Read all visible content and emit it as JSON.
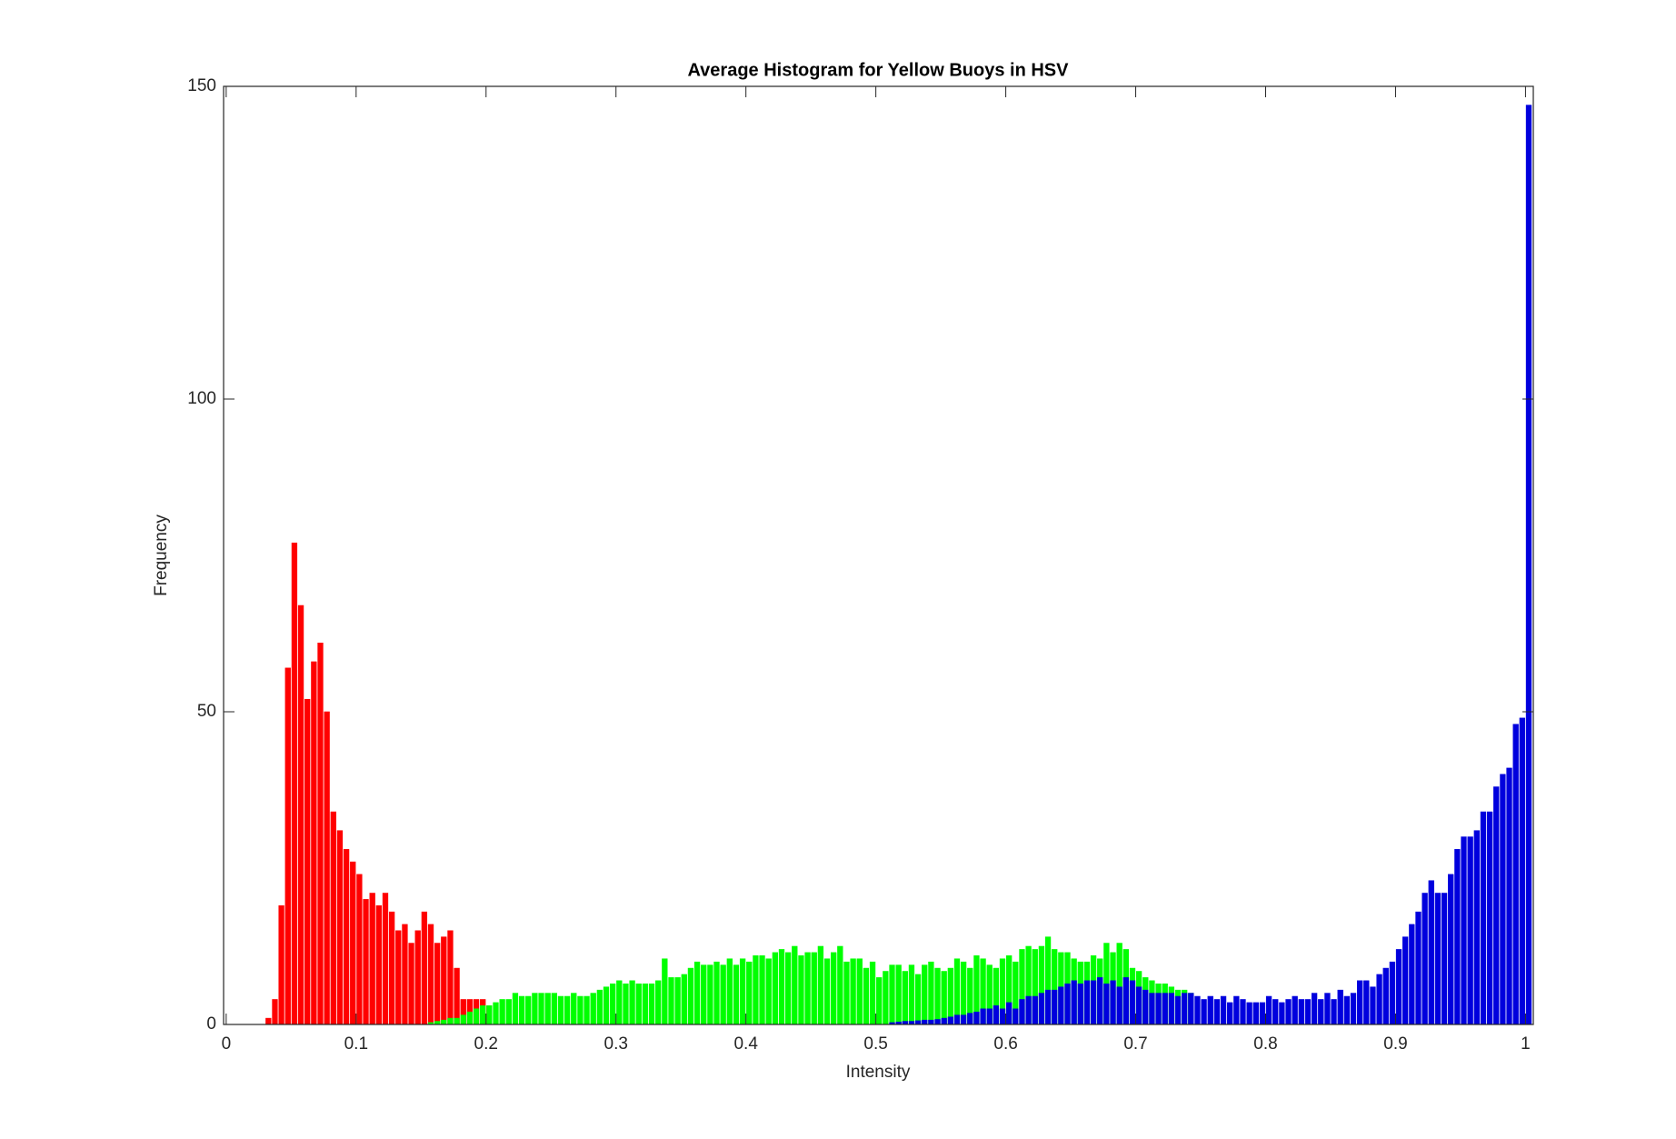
{
  "chart_data": {
    "type": "histogram",
    "title": "Average Histogram for Yellow Buoys in HSV",
    "x_label": "Intensity",
    "y_label": "Frequency",
    "xlim": [
      -0.002,
      1.006
    ],
    "ylim": [
      0,
      150
    ],
    "xticks": [
      0,
      0.1,
      0.2,
      0.3,
      0.4,
      0.5,
      0.6,
      0.7,
      0.8,
      0.9,
      1
    ],
    "yticks": [
      0,
      50,
      100,
      150
    ],
    "grid": false,
    "bins": [
      0,
      0.005,
      0.01,
      0.015,
      0.02,
      0.025,
      0.03,
      0.035,
      0.04,
      0.045,
      0.05,
      0.055,
      0.06,
      0.065,
      0.07,
      0.075,
      0.08,
      0.085,
      0.09,
      0.095,
      0.1,
      0.105,
      0.11,
      0.115,
      0.12,
      0.125,
      0.13,
      0.135,
      0.14,
      0.145,
      0.15,
      0.155,
      0.16,
      0.165,
      0.17,
      0.175,
      0.18,
      0.185,
      0.19,
      0.195,
      0.2,
      0.205,
      0.21,
      0.215,
      0.22,
      0.225,
      0.23,
      0.235,
      0.24,
      0.245,
      0.25,
      0.255,
      0.26,
      0.265,
      0.27,
      0.275,
      0.28,
      0.285,
      0.29,
      0.295,
      0.3,
      0.305,
      0.31,
      0.315,
      0.32,
      0.325,
      0.33,
      0.335,
      0.34,
      0.345,
      0.35,
      0.355,
      0.36,
      0.365,
      0.37,
      0.375,
      0.38,
      0.385,
      0.39,
      0.395,
      0.4,
      0.405,
      0.41,
      0.415,
      0.42,
      0.425,
      0.43,
      0.435,
      0.44,
      0.445,
      0.45,
      0.455,
      0.46,
      0.465,
      0.47,
      0.475,
      0.48,
      0.485,
      0.49,
      0.495,
      0.5,
      0.505,
      0.51,
      0.515,
      0.52,
      0.525,
      0.53,
      0.535,
      0.54,
      0.545,
      0.55,
      0.555,
      0.56,
      0.565,
      0.57,
      0.575,
      0.58,
      0.585,
      0.59,
      0.595,
      0.6,
      0.605,
      0.61,
      0.615,
      0.62,
      0.625,
      0.63,
      0.635,
      0.64,
      0.645,
      0.65,
      0.655,
      0.66,
      0.665,
      0.67,
      0.675,
      0.68,
      0.685,
      0.69,
      0.695,
      0.7,
      0.705,
      0.71,
      0.715,
      0.72,
      0.725,
      0.73,
      0.735,
      0.74,
      0.745,
      0.75,
      0.755,
      0.76,
      0.765,
      0.77,
      0.775,
      0.78,
      0.785,
      0.79,
      0.795,
      0.8,
      0.805,
      0.81,
      0.815,
      0.82,
      0.825,
      0.83,
      0.835,
      0.84,
      0.845,
      0.85,
      0.855,
      0.86,
      0.865,
      0.87,
      0.875,
      0.88,
      0.885,
      0.89,
      0.895,
      0.9,
      0.905,
      0.91,
      0.915,
      0.92,
      0.925,
      0.93,
      0.935,
      0.94,
      0.945,
      0.95,
      0.955,
      0.96,
      0.965,
      0.97,
      0.975,
      0.98,
      0.985,
      0.99,
      0.995,
      1,
      1.005
    ],
    "series": [
      {
        "color": "#ff0000",
        "values": [
          0,
          0,
          0,
          0,
          0,
          0,
          1,
          4,
          19,
          57,
          77,
          67,
          52,
          58,
          61,
          50,
          34,
          31,
          28,
          26,
          24,
          20,
          21,
          19,
          21,
          18,
          15,
          16,
          13,
          15,
          18,
          16,
          13,
          14,
          15,
          9,
          4,
          4,
          4,
          4,
          3,
          0,
          0,
          0,
          0,
          0,
          0,
          0,
          0,
          0,
          0,
          0,
          0,
          0,
          0,
          0,
          0,
          0,
          0,
          0,
          0,
          0,
          0,
          0,
          0,
          0,
          0,
          0,
          0,
          0,
          0,
          0,
          0,
          0,
          0,
          0,
          0,
          0,
          0,
          0,
          0,
          0,
          0,
          0,
          0,
          0,
          0,
          0,
          0,
          0,
          0,
          0,
          0,
          0,
          0,
          0,
          0,
          0,
          0,
          0,
          0,
          0,
          0,
          0,
          0,
          0,
          0,
          0,
          0,
          0,
          0,
          0,
          0,
          0,
          0,
          0,
          0,
          0,
          0,
          0,
          0,
          0,
          0,
          0,
          0,
          0,
          0,
          0,
          0,
          0,
          0,
          0,
          0,
          0,
          0,
          0,
          0,
          0,
          0,
          0,
          0,
          0,
          0,
          0,
          0,
          0,
          0,
          0,
          0,
          0,
          0,
          0,
          0,
          0,
          0,
          0,
          0,
          0,
          0,
          0,
          0,
          0,
          0,
          0,
          0,
          0,
          0,
          0,
          0,
          0,
          0,
          0,
          0,
          0,
          0,
          0,
          0,
          0,
          0,
          0,
          0,
          0,
          0,
          0,
          0,
          0,
          0,
          0,
          0,
          0,
          0,
          0,
          0,
          0,
          0,
          0,
          0,
          0,
          0,
          0,
          0
        ]
      },
      {
        "color": "#00ff00",
        "values": [
          0,
          0,
          0,
          0,
          0,
          0,
          0,
          0,
          0,
          0,
          0,
          0,
          0,
          0,
          0,
          0,
          0,
          0,
          0,
          0,
          0,
          0,
          0,
          0,
          0,
          0,
          0,
          0,
          0,
          0,
          0,
          0.3,
          0.5,
          0.7,
          1,
          1,
          1.5,
          2,
          2.5,
          3,
          3,
          3.5,
          4,
          4,
          5,
          4.5,
          4.5,
          5,
          5,
          5,
          5,
          4.5,
          4.5,
          5,
          4.5,
          4.5,
          5,
          5.5,
          6,
          6.5,
          7,
          6.5,
          7,
          6.5,
          6.5,
          6.5,
          7,
          10.5,
          7.5,
          7.5,
          8,
          9,
          10,
          9.5,
          9.5,
          10,
          9.5,
          10.5,
          9.5,
          10.5,
          10,
          11,
          11,
          10.5,
          11.5,
          12,
          11.5,
          12.5,
          11,
          11.5,
          11.5,
          12.5,
          10.5,
          11.5,
          12.5,
          10,
          10.5,
          10.5,
          9,
          10,
          7.5,
          8.5,
          9.5,
          9.5,
          8.5,
          9.5,
          8,
          9.5,
          10,
          9,
          8.5,
          9,
          10.5,
          10,
          9,
          11,
          10.5,
          9.5,
          9,
          10.5,
          11,
          10,
          12,
          12.5,
          12,
          12.5,
          14,
          12,
          11.5,
          11.5,
          10.5,
          10,
          10,
          11,
          10.5,
          13,
          11.5,
          13,
          12,
          9,
          8.5,
          7.5,
          7,
          6.5,
          6.5,
          6,
          5.5,
          5.5,
          5,
          0,
          0,
          0,
          0,
          0,
          0,
          0,
          0,
          0,
          0,
          0,
          0,
          0,
          0,
          0,
          0,
          0,
          0,
          0,
          0,
          0,
          0,
          0,
          0,
          0,
          0,
          0,
          0,
          0,
          0,
          0,
          0,
          0,
          0,
          0,
          0,
          0,
          0,
          0,
          0,
          0,
          0,
          0,
          0,
          0,
          0,
          0,
          0,
          0,
          0,
          0,
          0
        ]
      },
      {
        "color": "#0000dd",
        "values": [
          0,
          0,
          0,
          0,
          0,
          0,
          0,
          0,
          0,
          0,
          0,
          0,
          0,
          0,
          0,
          0,
          0,
          0,
          0,
          0,
          0,
          0,
          0,
          0,
          0,
          0,
          0,
          0,
          0,
          0,
          0,
          0,
          0,
          0,
          0,
          0,
          0,
          0,
          0,
          0,
          0,
          0,
          0,
          0,
          0,
          0,
          0,
          0,
          0,
          0,
          0,
          0,
          0,
          0,
          0,
          0,
          0,
          0,
          0,
          0,
          0,
          0,
          0,
          0,
          0,
          0,
          0,
          0,
          0,
          0,
          0,
          0,
          0,
          0,
          0,
          0,
          0,
          0,
          0,
          0,
          0,
          0,
          0,
          0,
          0,
          0,
          0,
          0,
          0,
          0,
          0,
          0,
          0,
          0,
          0,
          0,
          0,
          0,
          0,
          0,
          0,
          0,
          0.3,
          0.4,
          0.5,
          0.5,
          0.6,
          0.7,
          0.7,
          0.8,
          1,
          1.2,
          1.5,
          1.5,
          1.8,
          2,
          2.5,
          2.5,
          3,
          2.5,
          3.5,
          2.5,
          4,
          4.5,
          4.5,
          5,
          5.5,
          5.5,
          6,
          6.5,
          7,
          6.5,
          7,
          7,
          7.5,
          6.5,
          7,
          6,
          7.5,
          7,
          6,
          5.5,
          5,
          5,
          5,
          5,
          4.5,
          5,
          5,
          4.5,
          4,
          4.5,
          4,
          4.5,
          3.5,
          4.5,
          4,
          3.5,
          3.5,
          3.5,
          4.5,
          4,
          3.5,
          4,
          4.5,
          4,
          4,
          5,
          4,
          5,
          4,
          5.5,
          4.5,
          5,
          7,
          7,
          6,
          8,
          9,
          10,
          12,
          14,
          16,
          18,
          21,
          23,
          21,
          21,
          24,
          28,
          30,
          30,
          31,
          34,
          34,
          38,
          40,
          41,
          48,
          49,
          147
        ]
      }
    ]
  }
}
